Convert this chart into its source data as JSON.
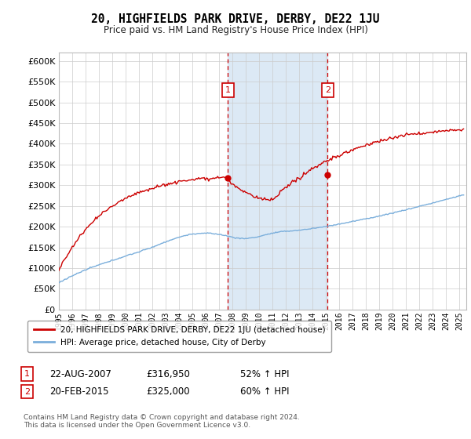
{
  "title": "20, HIGHFIELDS PARK DRIVE, DERBY, DE22 1JU",
  "subtitle": "Price paid vs. HM Land Registry's House Price Index (HPI)",
  "ylim_min": 0,
  "ylim_max": 620000,
  "yticks": [
    0,
    50000,
    100000,
    150000,
    200000,
    250000,
    300000,
    350000,
    400000,
    450000,
    500000,
    550000,
    600000
  ],
  "sale1_date": 2007.65,
  "sale1_price": 316950,
  "sale1_label": "1",
  "sale2_date": 2015.12,
  "sale2_price": 325000,
  "sale2_label": "2",
  "red_line_color": "#cc0000",
  "blue_line_color": "#7aaedb",
  "sale_marker_color": "#cc0000",
  "dashed_line_color": "#cc0000",
  "bg_highlight_color": "#dce9f5",
  "legend_line1": "20, HIGHFIELDS PARK DRIVE, DERBY, DE22 1JU (detached house)",
  "legend_line2": "HPI: Average price, detached house, City of Derby",
  "table_row1_num": "1",
  "table_row1_date": "22-AUG-2007",
  "table_row1_price": "£316,950",
  "table_row1_hpi": "52% ↑ HPI",
  "table_row2_num": "2",
  "table_row2_date": "20-FEB-2015",
  "table_row2_price": "£325,000",
  "table_row2_hpi": "60% ↑ HPI",
  "footer": "Contains HM Land Registry data © Crown copyright and database right 2024.\nThis data is licensed under the Open Government Licence v3.0."
}
